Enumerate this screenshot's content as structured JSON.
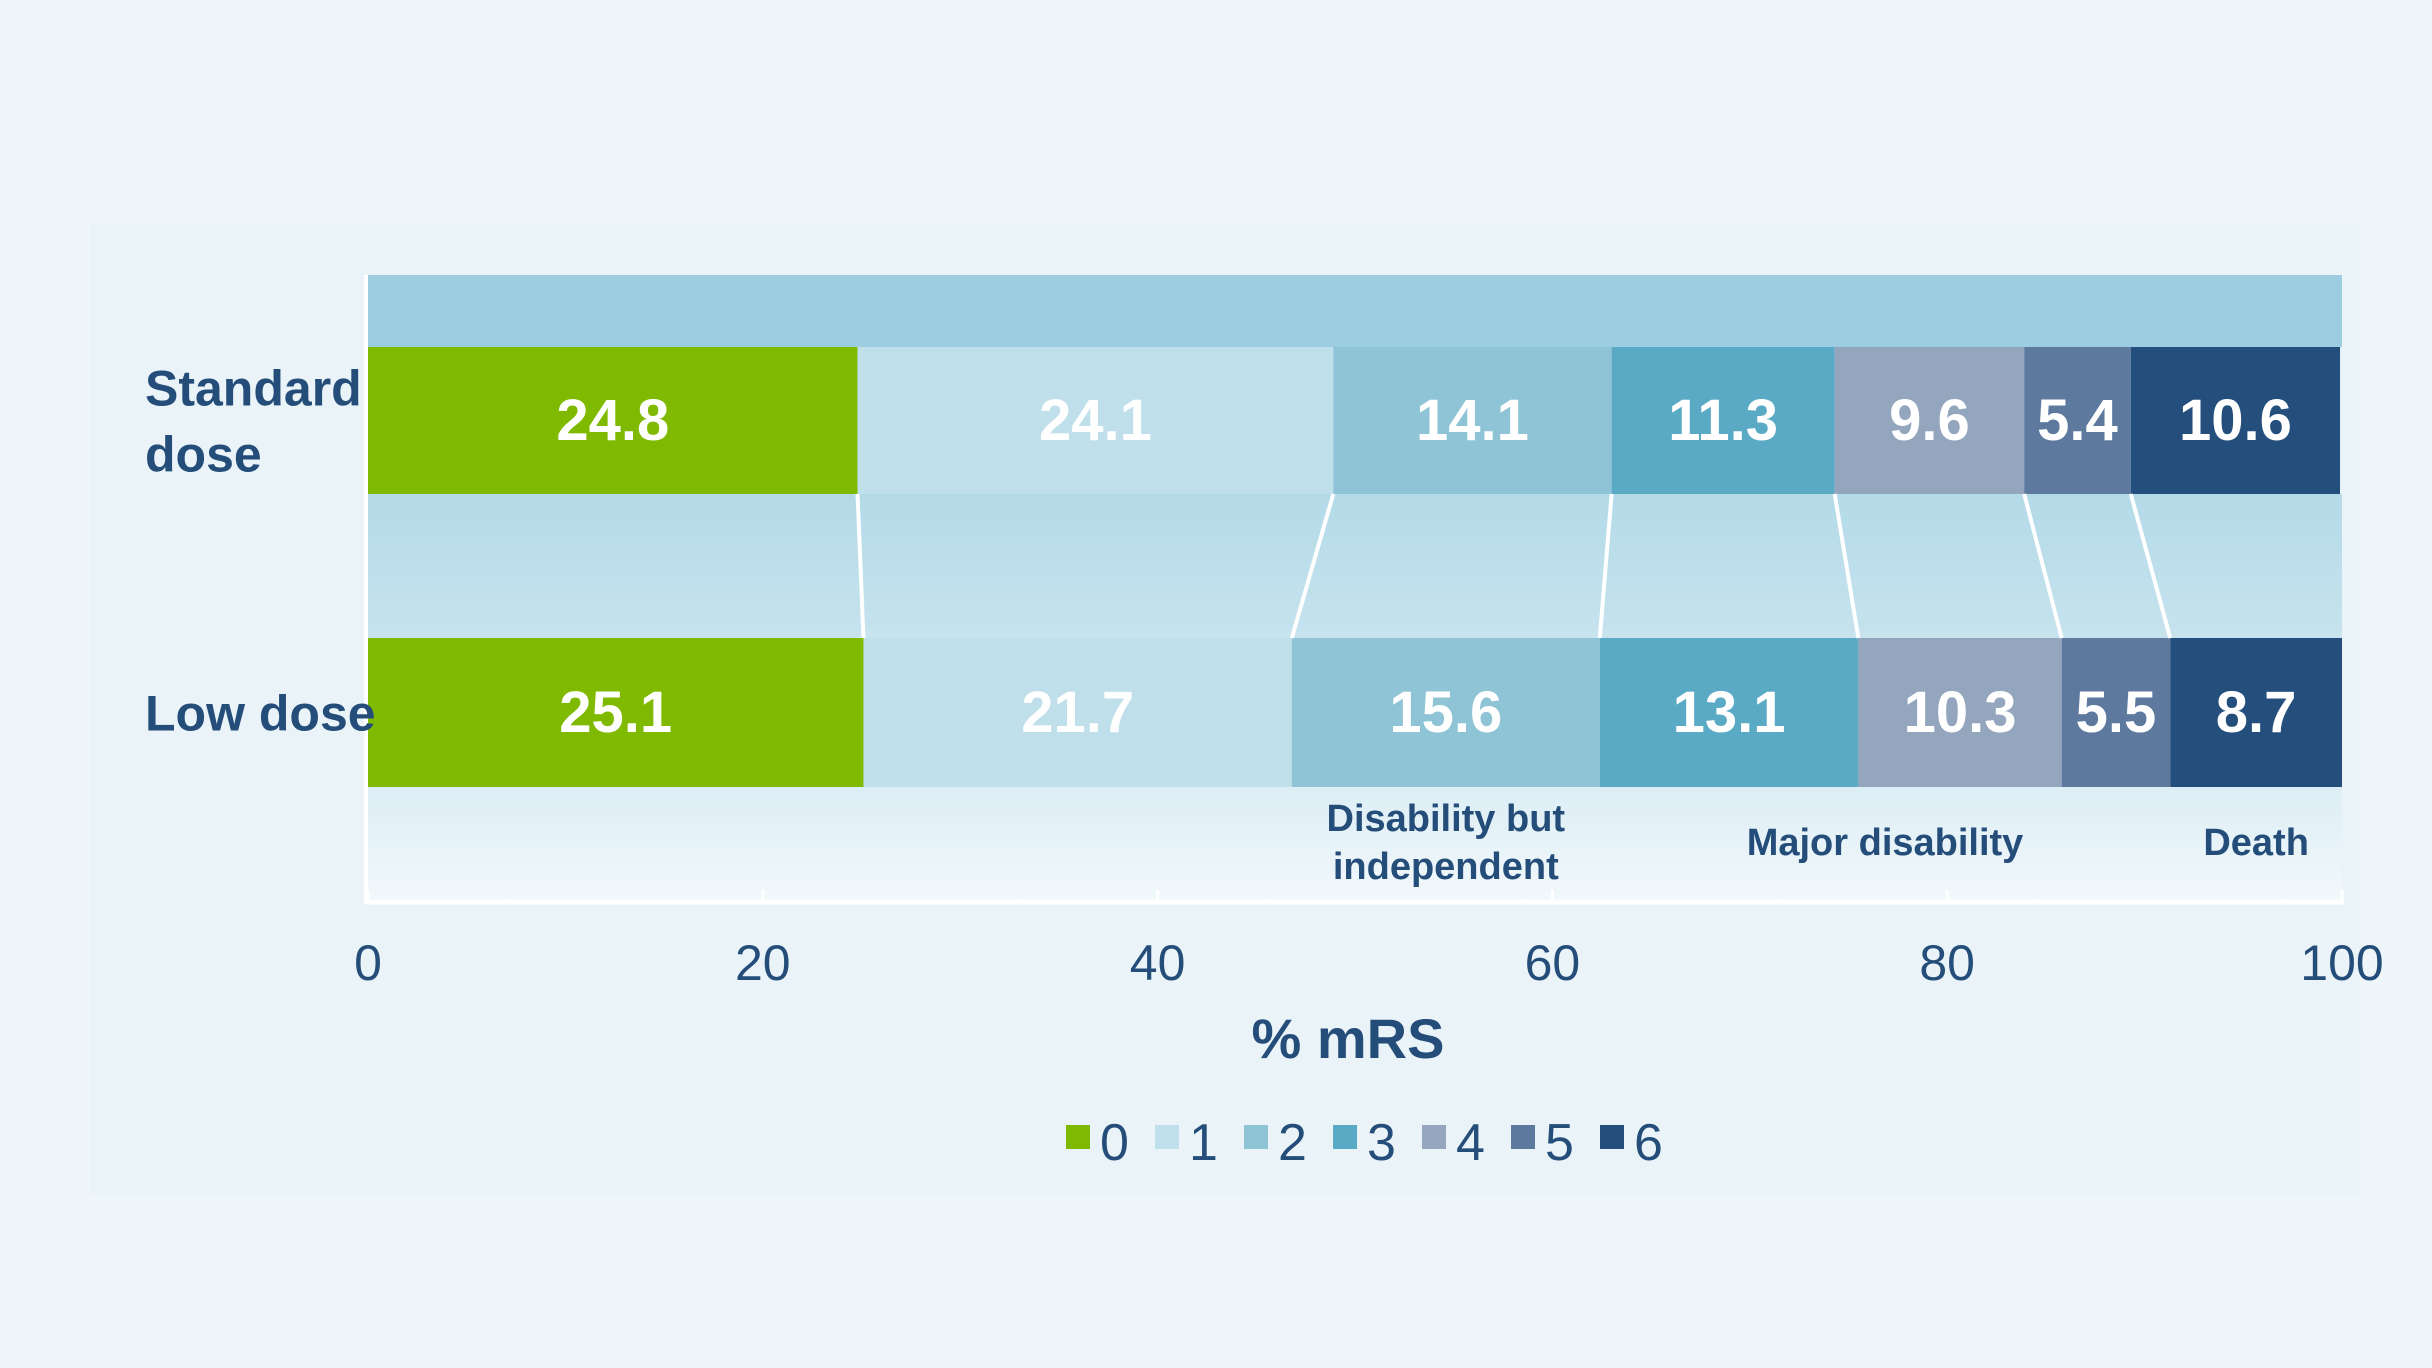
{
  "chart_data": {
    "type": "bar",
    "orientation": "horizontal-stacked",
    "title": "",
    "xlabel": "% mRS",
    "ylabel": "",
    "xlim": [
      0,
      100
    ],
    "xticks": [
      "0",
      "20",
      "40",
      "60",
      "80",
      "100"
    ],
    "categories": [
      "Standard dose",
      "Low dose"
    ],
    "category_lines": [
      [
        "Standard",
        "dose"
      ],
      [
        "Low dose"
      ]
    ],
    "series": [
      {
        "name": "0",
        "color": "#7fba00",
        "values": [
          24.8,
          25.1
        ]
      },
      {
        "name": "1",
        "color": "#bfdfea",
        "values": [
          24.1,
          21.7
        ]
      },
      {
        "name": "2",
        "color": "#8fc4d6",
        "values": [
          14.1,
          15.6
        ]
      },
      {
        "name": "3",
        "color": "#5aaac6",
        "values": [
          11.3,
          13.1
        ]
      },
      {
        "name": "4",
        "color": "#93a6bd",
        "values": [
          9.6,
          10.3
        ]
      },
      {
        "name": "5",
        "color": "#5d7a9e",
        "values": [
          5.4,
          5.5
        ]
      },
      {
        "name": "6",
        "color": "#244f7c",
        "values": [
          10.6,
          8.7
        ]
      }
    ],
    "data_labels": [
      [
        "24.8",
        "24.1",
        "14.1",
        "11.3",
        "9.6",
        "5.4",
        "10.6"
      ],
      [
        "25.1",
        "21.7",
        "15.6",
        "13.1",
        "10.3",
        "5.5",
        "8.7"
      ]
    ],
    "group_annotations": [
      {
        "lines": [
          "Disability but",
          "independent"
        ],
        "categories": [
          "2"
        ]
      },
      {
        "lines": [
          "Major disability"
        ],
        "categories": [
          "3",
          "4",
          "5"
        ]
      },
      {
        "lines": [
          "Death"
        ],
        "categories": [
          "6"
        ]
      }
    ],
    "legend": {
      "placement": "bottom-center",
      "entries": [
        "0",
        "1",
        "2",
        "3",
        "4",
        "5",
        "6"
      ]
    },
    "grid": false,
    "colors": {
      "text": "#244d7a",
      "band": "#9ccde0",
      "background": "#eff6f9"
    }
  }
}
